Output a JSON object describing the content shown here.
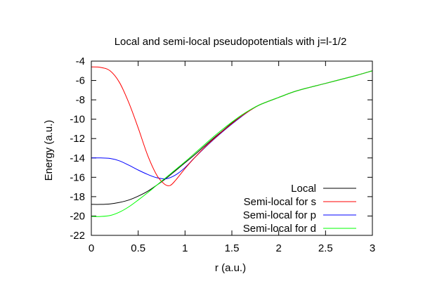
{
  "chart_data": {
    "type": "line",
    "title": "Local and semi-local pseudopotentials with j=l-1/2",
    "xlabel": "r (a.u.)",
    "ylabel": "Energy (a.u.)",
    "xlim": [
      0,
      3
    ],
    "ylim": [
      -22,
      -4
    ],
    "xticks": [
      0,
      0.5,
      1,
      1.5,
      2,
      2.5,
      3
    ],
    "xtick_labels": [
      "0",
      "0.5",
      "1",
      "1.5",
      "2",
      "2.5",
      "3"
    ],
    "yticks": [
      -22,
      -20,
      -18,
      -16,
      -14,
      -12,
      -10,
      -8,
      -6,
      -4
    ],
    "ytick_labels": [
      "-22",
      "-20",
      "-18",
      "-16",
      "-14",
      "-12",
      "-10",
      "-8",
      "-6",
      "-4"
    ],
    "grid": false,
    "legend_position": "bottom-right",
    "series": [
      {
        "name": "Local",
        "color": "#000000",
        "points": [
          [
            0,
            -18.8
          ],
          [
            0.1,
            -18.8
          ],
          [
            0.2,
            -18.75
          ],
          [
            0.3,
            -18.6
          ],
          [
            0.4,
            -18.35
          ],
          [
            0.5,
            -17.95
          ],
          [
            0.6,
            -17.45
          ],
          [
            0.7,
            -16.8
          ],
          [
            0.8,
            -16.1
          ],
          [
            0.9,
            -15.3
          ],
          [
            1.0,
            -14.5
          ],
          [
            1.1,
            -13.7
          ],
          [
            1.2,
            -12.85
          ],
          [
            1.3,
            -12.0
          ],
          [
            1.4,
            -11.2
          ],
          [
            1.5,
            -10.4
          ],
          [
            1.6,
            -9.7
          ],
          [
            1.7,
            -9.05
          ],
          [
            1.8,
            -8.5
          ],
          [
            2.0,
            -7.75
          ],
          [
            2.2,
            -7.05
          ],
          [
            2.5,
            -6.3
          ],
          [
            2.8,
            -5.55
          ],
          [
            3.0,
            -5.0
          ]
        ]
      },
      {
        "name": "Semi-local for s",
        "color": "#ff0000",
        "points": [
          [
            0,
            -4.6
          ],
          [
            0.1,
            -4.65
          ],
          [
            0.2,
            -5.0
          ],
          [
            0.3,
            -6.2
          ],
          [
            0.4,
            -8.3
          ],
          [
            0.5,
            -10.9
          ],
          [
            0.6,
            -13.7
          ],
          [
            0.7,
            -15.8
          ],
          [
            0.78,
            -16.7
          ],
          [
            0.84,
            -16.85
          ],
          [
            0.9,
            -16.3
          ],
          [
            1.0,
            -15.1
          ],
          [
            1.1,
            -14.0
          ],
          [
            1.2,
            -13.0
          ],
          [
            1.3,
            -12.1
          ],
          [
            1.4,
            -11.25
          ],
          [
            1.5,
            -10.45
          ],
          [
            1.6,
            -9.7
          ],
          [
            1.7,
            -9.05
          ],
          [
            1.8,
            -8.5
          ],
          [
            2.0,
            -7.75
          ],
          [
            2.2,
            -7.05
          ],
          [
            2.5,
            -6.3
          ],
          [
            2.8,
            -5.55
          ],
          [
            3.0,
            -5.0
          ]
        ]
      },
      {
        "name": "Semi-local for p",
        "color": "#0000ff",
        "points": [
          [
            0,
            -14.0
          ],
          [
            0.1,
            -14.0
          ],
          [
            0.2,
            -14.05
          ],
          [
            0.3,
            -14.3
          ],
          [
            0.4,
            -14.75
          ],
          [
            0.5,
            -15.25
          ],
          [
            0.6,
            -15.7
          ],
          [
            0.7,
            -16.05
          ],
          [
            0.8,
            -16.15
          ],
          [
            0.9,
            -15.75
          ],
          [
            1.0,
            -15.0
          ],
          [
            1.1,
            -14.0
          ],
          [
            1.2,
            -13.05
          ],
          [
            1.3,
            -12.15
          ],
          [
            1.4,
            -11.3
          ],
          [
            1.5,
            -10.5
          ],
          [
            1.6,
            -9.75
          ],
          [
            1.7,
            -9.05
          ],
          [
            1.8,
            -8.5
          ],
          [
            2.0,
            -7.75
          ],
          [
            2.2,
            -7.05
          ],
          [
            2.5,
            -6.3
          ],
          [
            2.8,
            -5.55
          ],
          [
            3.0,
            -5.0
          ]
        ]
      },
      {
        "name": "Semi-local for d",
        "color": "#00ff00",
        "points": [
          [
            0,
            -20.05
          ],
          [
            0.1,
            -20.05
          ],
          [
            0.2,
            -19.95
          ],
          [
            0.3,
            -19.6
          ],
          [
            0.4,
            -19.05
          ],
          [
            0.5,
            -18.35
          ],
          [
            0.6,
            -17.6
          ],
          [
            0.7,
            -16.8
          ],
          [
            0.8,
            -16.0
          ],
          [
            0.9,
            -15.2
          ],
          [
            1.0,
            -14.4
          ],
          [
            1.1,
            -13.55
          ],
          [
            1.2,
            -12.7
          ],
          [
            1.3,
            -11.85
          ],
          [
            1.4,
            -11.05
          ],
          [
            1.5,
            -10.3
          ],
          [
            1.6,
            -9.6
          ],
          [
            1.7,
            -9.0
          ],
          [
            1.8,
            -8.5
          ],
          [
            2.0,
            -7.75
          ],
          [
            2.2,
            -7.05
          ],
          [
            2.5,
            -6.3
          ],
          [
            2.8,
            -5.55
          ],
          [
            3.0,
            -5.0
          ]
        ]
      }
    ]
  }
}
